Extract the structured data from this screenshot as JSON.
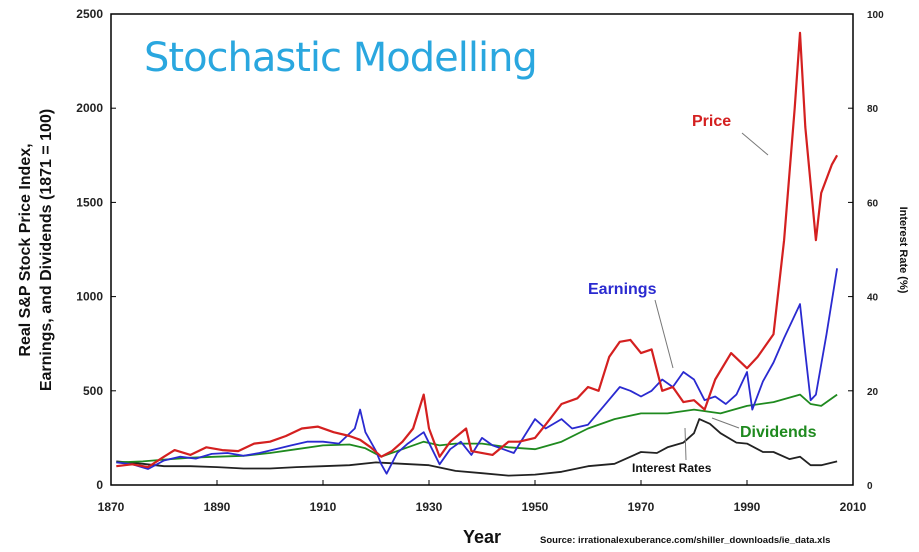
{
  "chart_data": {
    "type": "line",
    "title": "Stochastic Modelling",
    "xlabel": "Year",
    "ylabel_lines": [
      "Real S&P Stock Price Index,",
      "Earnings, and Dividends (1871 = 100)"
    ],
    "y2label": "Interest Rate (%)",
    "source": "Source: irrationalexuberance.com/shiller_downloads/ie_data.xls",
    "xlim": [
      1870,
      2010
    ],
    "ylim": [
      0,
      2500
    ],
    "y2lim": [
      0,
      100
    ],
    "x_ticks": [
      1870,
      1890,
      1910,
      1930,
      1950,
      1970,
      1990,
      2010
    ],
    "y_ticks": [
      0,
      500,
      1000,
      1500,
      2000,
      2500
    ],
    "y2_ticks": [
      0,
      20,
      40,
      60,
      80,
      100
    ],
    "grid": false,
    "series": [
      {
        "name": "Price",
        "color": "#d42020",
        "axis": "left",
        "x": [
          1871,
          1874,
          1877,
          1880,
          1882,
          1885,
          1888,
          1891,
          1894,
          1897,
          1900,
          1903,
          1906,
          1909,
          1912,
          1915,
          1917,
          1919,
          1921,
          1923,
          1925,
          1927,
          1929,
          1930,
          1932,
          1934,
          1937,
          1938,
          1942,
          1945,
          1947,
          1950,
          1952,
          1955,
          1958,
          1960,
          1962,
          1964,
          1966,
          1968,
          1970,
          1972,
          1974,
          1976,
          1978,
          1980,
          1982,
          1984,
          1987,
          1990,
          1992,
          1995,
          1997,
          1999,
          2000,
          2001,
          2003,
          2004,
          2006,
          2007
        ],
        "values": [
          100,
          110,
          95,
          150,
          185,
          160,
          200,
          185,
          180,
          220,
          230,
          260,
          300,
          310,
          280,
          260,
          240,
          200,
          150,
          180,
          230,
          300,
          480,
          300,
          150,
          230,
          300,
          180,
          160,
          230,
          230,
          250,
          320,
          430,
          460,
          520,
          500,
          680,
          760,
          770,
          700,
          720,
          500,
          520,
          440,
          450,
          400,
          560,
          700,
          620,
          680,
          800,
          1300,
          2000,
          2400,
          1900,
          1300,
          1550,
          1700,
          1750
        ]
      },
      {
        "name": "Earnings",
        "color": "#2a2ad0",
        "axis": "left",
        "x": [
          1871,
          1874,
          1877,
          1880,
          1883,
          1886,
          1889,
          1892,
          1895,
          1898,
          1901,
          1904,
          1907,
          1910,
          1913,
          1916,
          1917,
          1918,
          1920,
          1921,
          1922,
          1924,
          1926,
          1929,
          1932,
          1934,
          1936,
          1938,
          1940,
          1942,
          1944,
          1946,
          1948,
          1950,
          1952,
          1955,
          1957,
          1960,
          1963,
          1966,
          1968,
          1970,
          1972,
          1974,
          1976,
          1978,
          1980,
          1982,
          1984,
          1986,
          1988,
          1990,
          1991,
          1993,
          1995,
          1997,
          2000,
          2001,
          2002,
          2003,
          2005,
          2007
        ],
        "values": [
          120,
          110,
          85,
          130,
          150,
          140,
          165,
          170,
          155,
          170,
          190,
          210,
          230,
          230,
          220,
          300,
          400,
          280,
          180,
          110,
          60,
          170,
          220,
          280,
          110,
          190,
          230,
          160,
          250,
          210,
          190,
          170,
          260,
          350,
          300,
          350,
          300,
          320,
          420,
          520,
          500,
          470,
          500,
          560,
          520,
          600,
          560,
          450,
          470,
          430,
          480,
          600,
          400,
          550,
          650,
          780,
          960,
          700,
          450,
          480,
          800,
          1150
        ]
      },
      {
        "name": "Dividends",
        "color": "#1f8a1f",
        "axis": "left",
        "x": [
          1871,
          1876,
          1880,
          1885,
          1890,
          1895,
          1900,
          1905,
          1910,
          1915,
          1918,
          1921,
          1925,
          1929,
          1932,
          1935,
          1940,
          1945,
          1950,
          1955,
          1960,
          1965,
          1970,
          1975,
          1980,
          1985,
          1990,
          1995,
          2000,
          2002,
          2004,
          2007
        ],
        "values": [
          120,
          125,
          135,
          145,
          150,
          155,
          170,
          190,
          210,
          215,
          195,
          150,
          190,
          230,
          210,
          220,
          220,
          200,
          190,
          230,
          300,
          350,
          380,
          380,
          400,
          380,
          420,
          440,
          480,
          430,
          420,
          480
        ]
      },
      {
        "name": "Interest Rates",
        "color": "#222222",
        "axis": "right",
        "x": [
          1871,
          1876,
          1880,
          1885,
          1890,
          1895,
          1900,
          1905,
          1910,
          1915,
          1920,
          1925,
          1930,
          1935,
          1940,
          1945,
          1950,
          1955,
          1960,
          1965,
          1970,
          1973,
          1975,
          1978,
          1980,
          1981,
          1983,
          1985,
          1988,
          1990,
          1993,
          1995,
          1998,
          2000,
          2002,
          2004,
          2007
        ],
        "values": [
          5,
          4.5,
          4,
          4,
          3.8,
          3.5,
          3.5,
          3.8,
          4,
          4.2,
          4.8,
          4.5,
          4.2,
          3,
          2.5,
          2,
          2.2,
          2.8,
          4,
          4.5,
          7,
          6.8,
          8,
          9,
          11,
          14,
          13,
          11,
          9,
          8.8,
          7,
          7,
          5.5,
          6,
          4.2,
          4.2,
          5
        ]
      }
    ],
    "annotations": [
      {
        "text": "Price",
        "series": "Price",
        "color": "#d42020"
      },
      {
        "text": "Earnings",
        "series": "Earnings",
        "color": "#2a2ad0"
      },
      {
        "text": "Dividends",
        "series": "Dividends",
        "color": "#1f8a1f"
      },
      {
        "text": "Interest Rates",
        "series": "Interest Rates",
        "color": "#111111"
      }
    ]
  }
}
